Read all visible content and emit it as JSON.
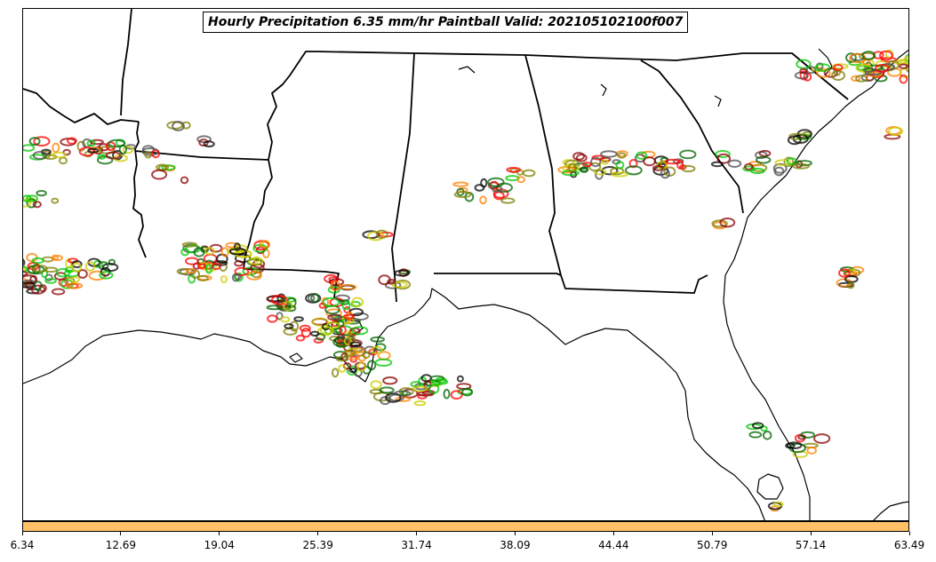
{
  "title": "Hourly Precipitation 6.35 mm/hr Paintball Valid: 202105102100f007",
  "colorbar": {
    "color": "#FFC067",
    "ticks": [
      "6.34",
      "12.69",
      "19.04",
      "25.39",
      "31.74",
      "38.09",
      "44.44",
      "50.79",
      "57.14",
      "63.49"
    ],
    "range": [
      6.34,
      63.49
    ]
  },
  "member_colors": [
    "#00C800",
    "#FF0000",
    "#FF7F00",
    "#8B0000",
    "#7F7F00",
    "#006400",
    "#000000",
    "#4D4D4D",
    "#CCCC00"
  ],
  "map": {
    "region": "Southeastern United States",
    "features": [
      "state-boundaries",
      "coastlines",
      "lakes"
    ]
  }
}
